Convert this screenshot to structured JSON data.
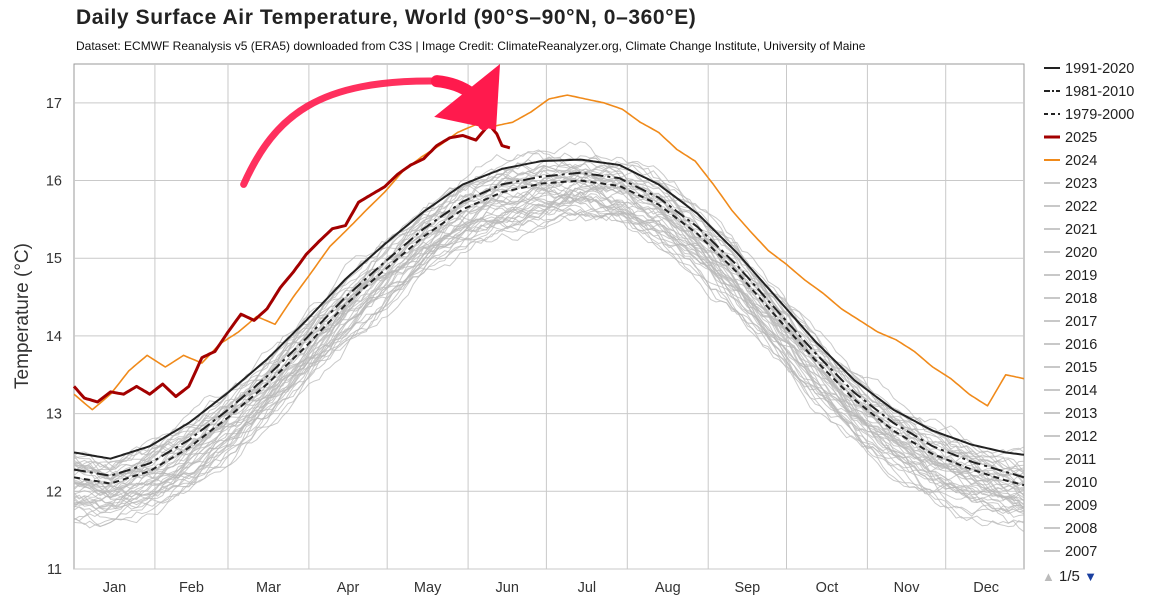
{
  "chart_data": {
    "type": "line",
    "title": "Daily Surface Air Temperature, World (90°S–90°N, 0–360°E)",
    "subtitle": "Dataset: ECMWF Reanalysis v5 (ERA5) downloaded from C3S | Image Credit: ClimateReanalyzer.org, Climate Change Institute, University of Maine",
    "ylabel": "Temperature (°C)",
    "xlabel": "",
    "ylim": [
      11,
      17.5
    ],
    "yticks": [
      11,
      12,
      13,
      14,
      15,
      16,
      17
    ],
    "xlim": [
      1,
      365
    ],
    "months": [
      "Jan",
      "Feb",
      "Mar",
      "Apr",
      "May",
      "Jun",
      "Jul",
      "Aug",
      "Sep",
      "Oct",
      "Nov",
      "Dec"
    ],
    "grid": true,
    "legend_position": "right",
    "series": [
      {
        "name": "1991-2020",
        "style": "solid",
        "color": "#222222",
        "x": [
          1,
          15,
          30,
          45,
          60,
          75,
          90,
          105,
          120,
          135,
          150,
          165,
          180,
          195,
          210,
          225,
          240,
          255,
          270,
          285,
          300,
          315,
          330,
          345,
          358,
          365
        ],
        "y": [
          12.5,
          12.42,
          12.58,
          12.88,
          13.27,
          13.7,
          14.2,
          14.73,
          15.18,
          15.6,
          15.95,
          16.15,
          16.25,
          16.27,
          16.2,
          15.95,
          15.57,
          15.07,
          14.5,
          13.93,
          13.43,
          13.05,
          12.78,
          12.6,
          12.5,
          12.47
        ]
      },
      {
        "name": "1981-2010",
        "style": "dashdot",
        "color": "#222222",
        "x": [
          1,
          15,
          30,
          45,
          60,
          75,
          90,
          105,
          120,
          135,
          150,
          165,
          180,
          195,
          210,
          225,
          240,
          255,
          270,
          285,
          300,
          315,
          330,
          345,
          358,
          365
        ],
        "y": [
          12.28,
          12.2,
          12.36,
          12.66,
          13.05,
          13.48,
          13.97,
          14.5,
          14.95,
          15.38,
          15.73,
          15.95,
          16.05,
          16.1,
          16.03,
          15.78,
          15.4,
          14.91,
          14.34,
          13.78,
          13.27,
          12.88,
          12.58,
          12.38,
          12.25,
          12.18
        ]
      },
      {
        "name": "1979-2000",
        "style": "dashed",
        "color": "#222222",
        "x": [
          1,
          15,
          30,
          45,
          60,
          75,
          90,
          105,
          120,
          135,
          150,
          165,
          180,
          195,
          210,
          225,
          240,
          255,
          270,
          285,
          300,
          315,
          330,
          345,
          358,
          365
        ],
        "y": [
          12.18,
          12.1,
          12.26,
          12.56,
          12.95,
          13.38,
          13.87,
          14.4,
          14.85,
          15.28,
          15.63,
          15.85,
          15.96,
          16.0,
          15.93,
          15.69,
          15.31,
          14.82,
          14.25,
          13.69,
          13.18,
          12.78,
          12.48,
          12.28,
          12.14,
          12.08
        ]
      },
      {
        "name": "2025",
        "style": "solid-bold",
        "color": "#a30000",
        "x": [
          1,
          5,
          10,
          15,
          20,
          25,
          30,
          35,
          40,
          45,
          50,
          55,
          60,
          65,
          70,
          75,
          80,
          85,
          90,
          95,
          100,
          105,
          110,
          115,
          120,
          125,
          130,
          135,
          140,
          145,
          150,
          155,
          160,
          163,
          165,
          168
        ],
        "y": [
          13.35,
          13.2,
          13.15,
          13.28,
          13.25,
          13.35,
          13.25,
          13.38,
          13.22,
          13.35,
          13.72,
          13.8,
          14.05,
          14.28,
          14.2,
          14.35,
          14.62,
          14.82,
          15.05,
          15.22,
          15.38,
          15.42,
          15.72,
          15.82,
          15.92,
          16.08,
          16.2,
          16.28,
          16.45,
          16.55,
          16.58,
          16.52,
          16.72,
          16.6,
          16.45,
          16.42
        ]
      },
      {
        "name": "2024",
        "style": "solid",
        "color": "#f08a1a",
        "x": [
          1,
          8,
          15,
          22,
          29,
          36,
          43,
          50,
          57,
          64,
          71,
          78,
          85,
          92,
          99,
          106,
          113,
          120,
          127,
          134,
          141,
          148,
          155,
          162,
          169,
          176,
          183,
          190,
          197,
          204,
          211,
          218,
          225,
          232,
          239,
          246,
          253,
          260,
          267,
          274,
          281,
          288,
          295,
          302,
          309,
          316,
          323,
          330,
          337,
          344,
          351,
          358,
          365
        ],
        "y": [
          13.25,
          13.05,
          13.25,
          13.55,
          13.75,
          13.6,
          13.75,
          13.65,
          13.9,
          14.05,
          14.25,
          14.15,
          14.5,
          14.82,
          15.15,
          15.38,
          15.62,
          15.85,
          16.12,
          16.3,
          16.45,
          16.62,
          16.72,
          16.7,
          16.75,
          16.88,
          17.05,
          17.1,
          17.05,
          17.0,
          16.92,
          16.75,
          16.62,
          16.4,
          16.25,
          15.95,
          15.62,
          15.35,
          15.1,
          14.92,
          14.72,
          14.55,
          14.35,
          14.2,
          14.05,
          13.95,
          13.8,
          13.6,
          13.45,
          13.25,
          13.1,
          13.5,
          13.45
        ]
      },
      {
        "name": "2023",
        "style": "solid",
        "color": "#c8c8c8"
      },
      {
        "name": "2022",
        "style": "solid",
        "color": "#c8c8c8"
      },
      {
        "name": "2021",
        "style": "solid",
        "color": "#c8c8c8"
      },
      {
        "name": "2020",
        "style": "solid",
        "color": "#c8c8c8"
      },
      {
        "name": "2019",
        "style": "solid",
        "color": "#c8c8c8"
      },
      {
        "name": "2018",
        "style": "solid",
        "color": "#c8c8c8"
      },
      {
        "name": "2017",
        "style": "solid",
        "color": "#c8c8c8"
      },
      {
        "name": "2016",
        "style": "solid",
        "color": "#c8c8c8"
      },
      {
        "name": "2015",
        "style": "solid",
        "color": "#c8c8c8"
      },
      {
        "name": "2014",
        "style": "solid",
        "color": "#c8c8c8"
      },
      {
        "name": "2013",
        "style": "solid",
        "color": "#c8c8c8"
      },
      {
        "name": "2012",
        "style": "solid",
        "color": "#c8c8c8"
      },
      {
        "name": "2011",
        "style": "solid",
        "color": "#c8c8c8"
      },
      {
        "name": "2010",
        "style": "solid",
        "color": "#c8c8c8"
      },
      {
        "name": "2009",
        "style": "solid",
        "color": "#c8c8c8"
      },
      {
        "name": "2008",
        "style": "solid",
        "color": "#c8c8c8"
      },
      {
        "name": "2007",
        "style": "solid",
        "color": "#c8c8c8"
      }
    ],
    "annotations": [
      {
        "type": "hand-drawn-arrow",
        "color": "#ff1a4d",
        "points_to_day": 165
      }
    ]
  },
  "legend": {
    "page": "1/5",
    "up_icon": "triangle-up-icon",
    "down_icon": "triangle-down-icon"
  }
}
